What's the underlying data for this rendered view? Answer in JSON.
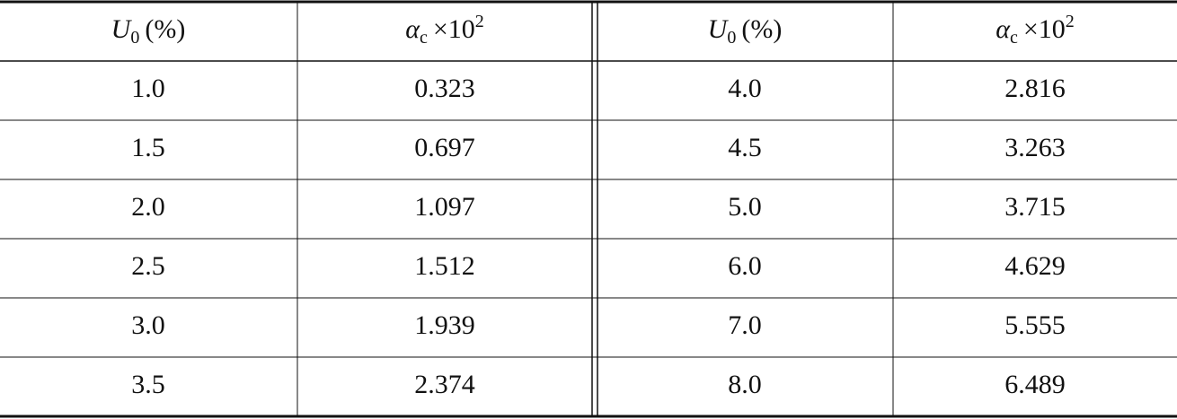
{
  "table": {
    "header": [
      {
        "main": "U",
        "sub": "0",
        "rest": "(%)"
      },
      {
        "main": "α",
        "sub": "c",
        "rest": "×10",
        "sup": "2"
      },
      {
        "main": "U",
        "sub": "0",
        "rest": "(%)"
      },
      {
        "main": "α",
        "sub": "c",
        "rest": "×10",
        "sup": "2"
      }
    ],
    "rows": [
      [
        "1.0",
        "0.323",
        "4.0",
        "2.816"
      ],
      [
        "1.5",
        "0.697",
        "4.5",
        "3.263"
      ],
      [
        "2.0",
        "1.097",
        "5.0",
        "3.715"
      ],
      [
        "2.5",
        "1.512",
        "6.0",
        "4.629"
      ],
      [
        "3.0",
        "1.939",
        "7.0",
        "5.555"
      ],
      [
        "3.5",
        "2.374",
        "8.0",
        "6.489"
      ]
    ]
  }
}
